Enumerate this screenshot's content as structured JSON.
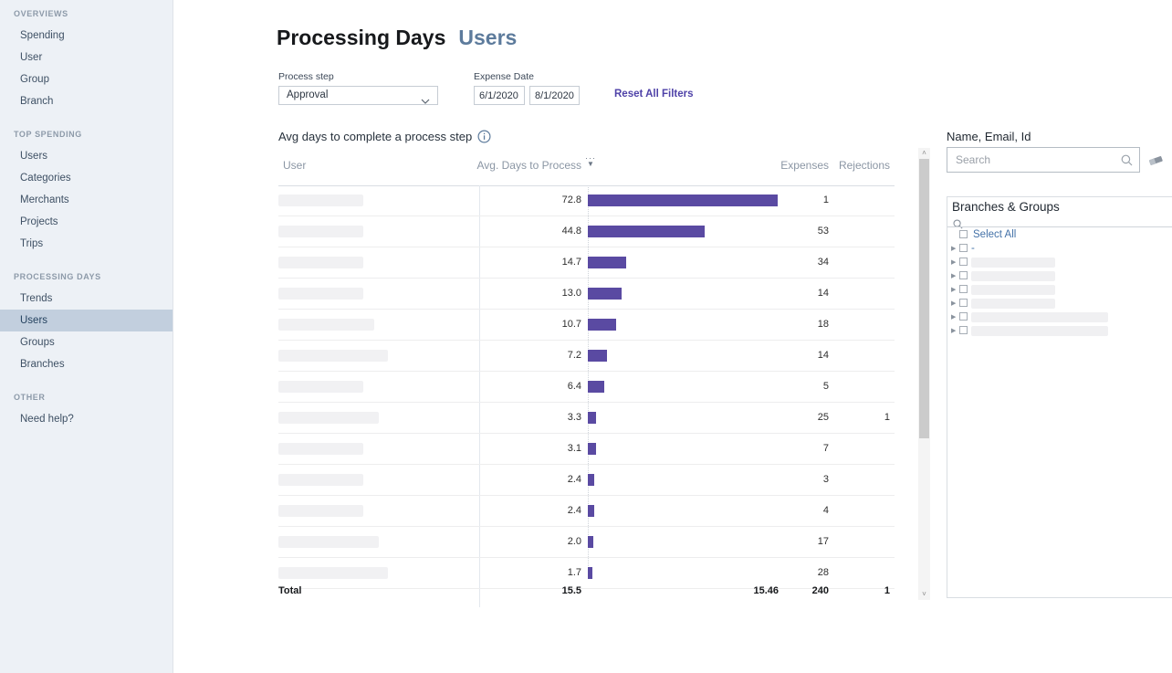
{
  "sidebar": {
    "sections": [
      {
        "label": "OVERVIEWS",
        "items": [
          "Spending",
          "User",
          "Group",
          "Branch"
        ]
      },
      {
        "label": "TOP SPENDING",
        "items": [
          "Users",
          "Categories",
          "Merchants",
          "Projects",
          "Trips"
        ]
      },
      {
        "label": "PROCESSING DAYS",
        "items": [
          "Trends",
          "Users",
          "Groups",
          "Branches"
        ]
      },
      {
        "label": "OTHER",
        "items": [
          "Need help?"
        ]
      }
    ],
    "selected_section": 2,
    "selected_index": 1,
    "selected_bg": "#c2cfde"
  },
  "header": {
    "title": "Processing Days",
    "subtitle": "Users"
  },
  "filters": {
    "process_step_label": "Process step",
    "process_step_value": "Approval",
    "expense_date_label": "Expense Date",
    "date_from": "6/1/2020",
    "date_to": "8/1/2020",
    "reset_label": "Reset All Filters",
    "accent_color": "#4f42a8"
  },
  "chart_data": {
    "type": "bar",
    "title": "Avg days to complete a process step",
    "columns": [
      "User",
      "Avg. Days to Process",
      "Expenses",
      "Rejections"
    ],
    "xlim": [
      0,
      72.8
    ],
    "bar_color": "#5a4aa2",
    "rows": [
      {
        "user": "",
        "user_redacted": true,
        "user_redacted_width": 93,
        "avg_days": "72.8",
        "expenses": "1",
        "rejections": ""
      },
      {
        "user": "",
        "user_redacted": true,
        "user_redacted_width": 93,
        "avg_days": "44.8",
        "expenses": "53",
        "rejections": ""
      },
      {
        "user": "",
        "user_redacted": true,
        "user_redacted_width": 93,
        "avg_days": "14.7",
        "expenses": "34",
        "rejections": ""
      },
      {
        "user": "",
        "user_redacted": true,
        "user_redacted_width": 93,
        "avg_days": "13.0",
        "expenses": "14",
        "rejections": ""
      },
      {
        "user": "",
        "user_redacted": true,
        "user_redacted_width": 105,
        "avg_days": "10.7",
        "expenses": "18",
        "rejections": ""
      },
      {
        "user": "",
        "user_redacted": true,
        "user_redacted_width": 120,
        "avg_days": "7.2",
        "expenses": "14",
        "rejections": ""
      },
      {
        "user": "",
        "user_redacted": true,
        "user_redacted_width": 93,
        "avg_days": "6.4",
        "expenses": "5",
        "rejections": ""
      },
      {
        "user": "",
        "user_redacted": true,
        "user_redacted_width": 110,
        "avg_days": "3.3",
        "expenses": "25",
        "rejections": "1"
      },
      {
        "user": "",
        "user_redacted": true,
        "user_redacted_width": 93,
        "avg_days": "3.1",
        "expenses": "7",
        "rejections": ""
      },
      {
        "user": "",
        "user_redacted": true,
        "user_redacted_width": 93,
        "avg_days": "2.4",
        "expenses": "3",
        "rejections": ""
      },
      {
        "user": "",
        "user_redacted": true,
        "user_redacted_width": 93,
        "avg_days": "2.4",
        "expenses": "4",
        "rejections": ""
      },
      {
        "user": "",
        "user_redacted": true,
        "user_redacted_width": 110,
        "avg_days": "2.0",
        "expenses": "17",
        "rejections": ""
      },
      {
        "user": "",
        "user_redacted": true,
        "user_redacted_width": 120,
        "avg_days": "1.7",
        "expenses": "28",
        "rejections": ""
      }
    ],
    "total": {
      "label": "Total",
      "avg_days": "15.5",
      "weighted_avg": "15.46",
      "expenses": "240",
      "rejections": "1"
    }
  },
  "table_header": {
    "sort_icon": "sort-descending-icon",
    "info_icon": "info-icon"
  },
  "right_panel": {
    "search_label": "Name, Email, Id",
    "search_placeholder": "Search",
    "icons": [
      "search-icon",
      "eraser-icon"
    ],
    "tree": {
      "title": "Branches & Groups",
      "select_all_label": "Select All",
      "items": [
        {
          "label": "-",
          "redacted": false,
          "redacted_width": 0
        },
        {
          "label": "",
          "redacted": true,
          "redacted_width": 92
        },
        {
          "label": "",
          "redacted": true,
          "redacted_width": 92
        },
        {
          "label": "",
          "redacted": true,
          "redacted_width": 92
        },
        {
          "label": "",
          "redacted": true,
          "redacted_width": 92
        },
        {
          "label": "",
          "redacted": true,
          "redacted_width": 150
        },
        {
          "label": "",
          "redacted": true,
          "redacted_width": 150
        }
      ]
    }
  },
  "colors": {
    "sidebar_bg": "#edf1f6",
    "subtitle": "#5d7b9c",
    "bar": "#5a4aa2",
    "accent": "#4f42a8",
    "header_text": "#8b96a4"
  }
}
